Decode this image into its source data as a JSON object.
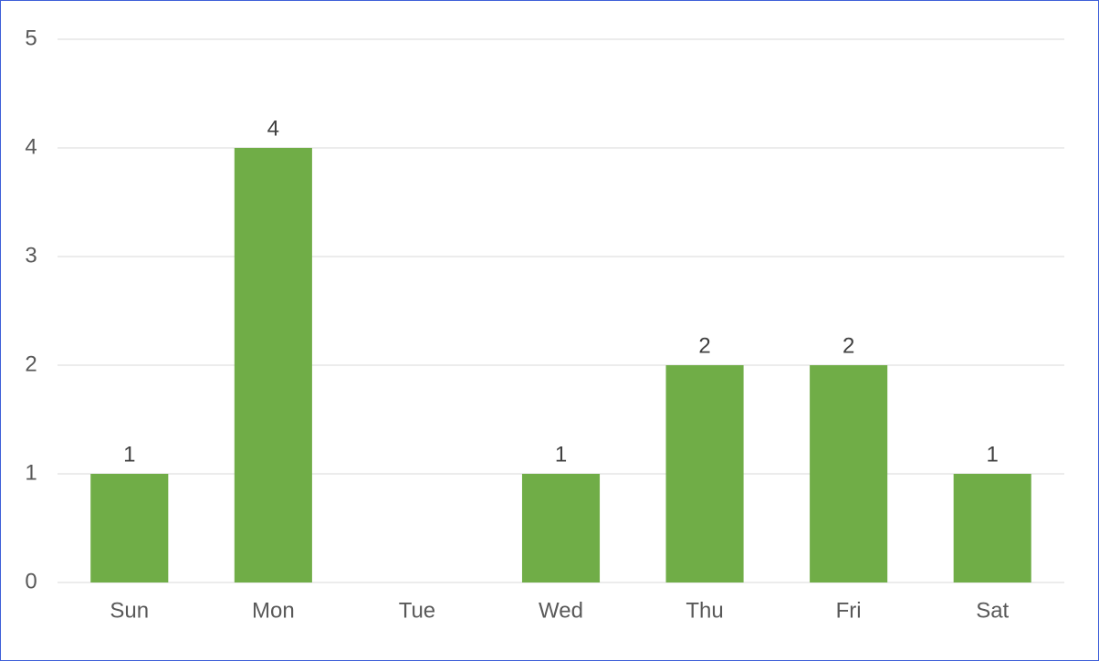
{
  "chart_data": {
    "type": "bar",
    "categories": [
      "Sun",
      "Mon",
      "Tue",
      "Wed",
      "Thu",
      "Fri",
      "Sat"
    ],
    "values": [
      1,
      4,
      null,
      1,
      2,
      2,
      1
    ],
    "color": "#70ad47",
    "ylim": [
      0,
      5
    ],
    "yticks": [
      0,
      1,
      2,
      3,
      4,
      5
    ],
    "grid": true,
    "data_labels": true
  }
}
